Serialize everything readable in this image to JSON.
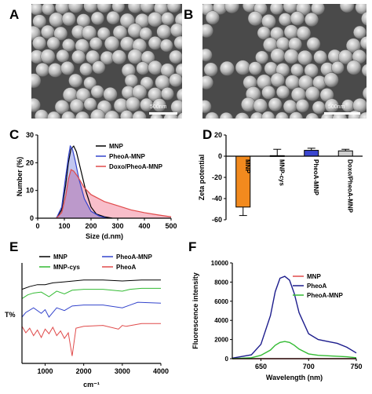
{
  "panels": {
    "A": {
      "label": "A",
      "scale_text": "500nm"
    },
    "B": {
      "label": "B",
      "scale_text": "500nm"
    },
    "C": {
      "label": "C"
    },
    "D": {
      "label": "D"
    },
    "E": {
      "label": "E"
    },
    "F": {
      "label": "F"
    }
  },
  "colors": {
    "black": "#000000",
    "blue": "#3344cc",
    "red": "#e04a4a",
    "pink": "#f06f8a",
    "green": "#33bb33",
    "orange": "#f28a1e",
    "navy": "#1c1c8c"
  },
  "chart_data": [
    {
      "id": "C",
      "type": "area",
      "xlabel": "Size (d.nm)",
      "ylabel": "Number (%)",
      "xlim": [
        0,
        500
      ],
      "ylim": [
        0,
        30
      ],
      "xticks": [
        "0",
        "100",
        "200",
        "300",
        "400",
        "500"
      ],
      "yticks": [
        "0",
        "10",
        "20",
        "30"
      ],
      "legend": "top-right",
      "series": [
        {
          "name": "MNP",
          "x": [
            70,
            90,
            105,
            115,
            125,
            135,
            145,
            160,
            180,
            200,
            220,
            250,
            280
          ],
          "y": [
            0,
            3,
            12,
            20,
            25,
            26,
            24,
            18,
            10,
            4,
            1.5,
            0.5,
            0
          ]
        },
        {
          "name": "PheoA-MNP",
          "x": [
            70,
            90,
            105,
            115,
            122,
            130,
            140,
            155,
            175,
            200,
            230,
            260
          ],
          "y": [
            0,
            4,
            15,
            22,
            26,
            25,
            21,
            14,
            7,
            2.5,
            0.8,
            0
          ]
        },
        {
          "name": "Doxo/PheoA-MNP",
          "x": [
            70,
            90,
            105,
            115,
            125,
            135,
            150,
            175,
            200,
            250,
            300,
            350,
            400,
            450,
            500
          ],
          "y": [
            0,
            2,
            8,
            14,
            17.5,
            17,
            15,
            11,
            8.5,
            6,
            4.5,
            3,
            2,
            1.2,
            0.5
          ]
        }
      ]
    },
    {
      "id": "D",
      "type": "bar",
      "ylabel": "Zeta potential",
      "ylim": [
        -60,
        20
      ],
      "yticks": [
        "20",
        "0",
        "-20",
        "-40",
        "-60"
      ],
      "categories": [
        "MNP",
        "MNP-cys",
        "PheoA-MNP",
        "Doxo/PheoA-MNP"
      ],
      "values": [
        -48,
        0.5,
        5.5,
        5.0
      ],
      "errors": [
        8,
        6,
        2,
        1.5
      ]
    },
    {
      "id": "E",
      "type": "line",
      "xlabel": "cm⁻¹",
      "ylabel": "T%",
      "xlim": [
        400,
        4000
      ],
      "xticks": [
        "1000",
        "2000",
        "3000",
        "4000"
      ],
      "legend": "top",
      "series": [
        {
          "name": "MNP",
          "x": [
            400,
            600,
            800,
            1000,
            1200,
            1500,
            2000,
            2500,
            3000,
            3500,
            4000
          ],
          "y": [
            80,
            83,
            85,
            85,
            87,
            88,
            90,
            90,
            89,
            90,
            90
          ]
        },
        {
          "name": "MNP-cys",
          "x": [
            400,
            550,
            700,
            900,
            1100,
            1300,
            1500,
            1700,
            2000,
            2500,
            3000,
            3200,
            3500,
            4000
          ],
          "y": [
            70,
            74,
            76,
            77,
            72,
            78,
            75,
            79,
            80,
            80,
            78,
            80,
            81,
            81
          ]
        },
        {
          "name": "PheoA-MNP",
          "x": [
            400,
            500,
            700,
            900,
            1000,
            1100,
            1300,
            1500,
            1700,
            2000,
            2500,
            3000,
            3200,
            3400,
            4000
          ],
          "y": [
            50,
            55,
            60,
            54,
            58,
            50,
            60,
            57,
            62,
            63,
            63,
            60,
            63,
            66,
            65
          ]
        },
        {
          "name": "PheoA",
          "x": [
            400,
            500,
            600,
            700,
            800,
            900,
            1000,
            1100,
            1200,
            1300,
            1400,
            1500,
            1600,
            1700,
            1800,
            2000,
            2500,
            2900,
            3000,
            3100,
            3500,
            4000
          ],
          "y": [
            40,
            33,
            38,
            30,
            36,
            28,
            37,
            32,
            39,
            30,
            35,
            27,
            33,
            8,
            38,
            40,
            41,
            37,
            41,
            40,
            43,
            43
          ]
        }
      ]
    },
    {
      "id": "F",
      "type": "line",
      "xlabel": "Wavelength (nm)",
      "ylabel": "Fluorescence intensity",
      "xlim": [
        620,
        750
      ],
      "ylim": [
        0,
        10000
      ],
      "xticks": [
        "650",
        "700",
        "750"
      ],
      "yticks": [
        "0",
        "2000",
        "4000",
        "6000",
        "8000",
        "10000"
      ],
      "legend": "top-right",
      "series": [
        {
          "name": "MNP",
          "x": [
            620,
            750
          ],
          "y": [
            0,
            0
          ]
        },
        {
          "name": "PheoA",
          "x": [
            620,
            640,
            650,
            660,
            665,
            670,
            675,
            680,
            685,
            690,
            700,
            710,
            720,
            730,
            740,
            750
          ],
          "y": [
            60,
            400,
            1500,
            4500,
            7000,
            8400,
            8600,
            8200,
            6800,
            4800,
            2600,
            2000,
            1800,
            1600,
            1200,
            600
          ]
        },
        {
          "name": "PheoA-MNP",
          "x": [
            620,
            640,
            650,
            660,
            665,
            670,
            675,
            680,
            685,
            690,
            700,
            710,
            720,
            730,
            740,
            750
          ],
          "y": [
            0,
            100,
            350,
            900,
            1400,
            1700,
            1800,
            1700,
            1400,
            1000,
            500,
            350,
            300,
            250,
            200,
            100
          ]
        }
      ]
    }
  ]
}
